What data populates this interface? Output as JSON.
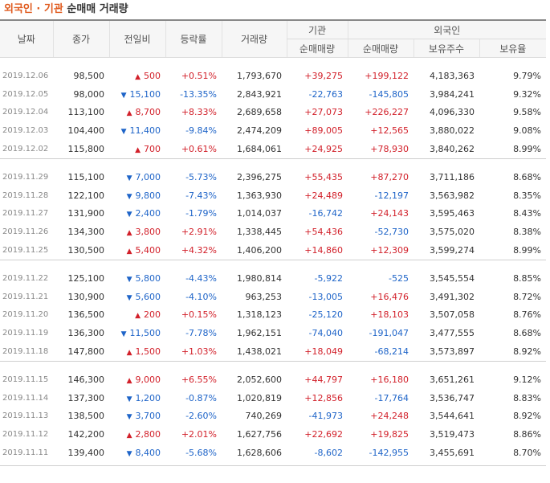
{
  "title": {
    "part1": "외국인",
    "separator": "·",
    "part2": "기관",
    "rest": "순매매 거래량"
  },
  "headers": {
    "date": "날짜",
    "close": "종가",
    "change": "전일비",
    "rate": "등락률",
    "volume": "거래량",
    "institution": "기관",
    "foreign": "외국인",
    "inst_net": "순매매량",
    "foreign_net": "순매매량",
    "foreign_shares": "보유주수",
    "foreign_ratio": "보유율"
  },
  "colors": {
    "up": "#d2202a",
    "down": "#1e64c8",
    "title_accent": "#e05b1f"
  },
  "groups": [
    [
      {
        "date": "2019.12.06",
        "close": "98,500",
        "dir": "up",
        "change": "500",
        "rate": "+0.51%",
        "volume": "1,793,670",
        "inst": "+39,275",
        "foreign": "+199,122",
        "shares": "4,183,363",
        "ratio": "9.79%"
      },
      {
        "date": "2019.12.05",
        "close": "98,000",
        "dir": "down",
        "change": "15,100",
        "rate": "-13.35%",
        "volume": "2,843,921",
        "inst": "-22,763",
        "foreign": "-145,805",
        "shares": "3,984,241",
        "ratio": "9.32%"
      },
      {
        "date": "2019.12.04",
        "close": "113,100",
        "dir": "up",
        "change": "8,700",
        "rate": "+8.33%",
        "volume": "2,689,658",
        "inst": "+27,073",
        "foreign": "+226,227",
        "shares": "4,096,330",
        "ratio": "9.58%"
      },
      {
        "date": "2019.12.03",
        "close": "104,400",
        "dir": "down",
        "change": "11,400",
        "rate": "-9.84%",
        "volume": "2,474,209",
        "inst": "+89,005",
        "foreign": "+12,565",
        "shares": "3,880,022",
        "ratio": "9.08%"
      },
      {
        "date": "2019.12.02",
        "close": "115,800",
        "dir": "up",
        "change": "700",
        "rate": "+0.61%",
        "volume": "1,684,061",
        "inst": "+24,925",
        "foreign": "+78,930",
        "shares": "3,840,262",
        "ratio": "8.99%"
      }
    ],
    [
      {
        "date": "2019.11.29",
        "close": "115,100",
        "dir": "down",
        "change": "7,000",
        "rate": "-5.73%",
        "volume": "2,396,275",
        "inst": "+55,435",
        "foreign": "+87,270",
        "shares": "3,711,186",
        "ratio": "8.68%"
      },
      {
        "date": "2019.11.28",
        "close": "122,100",
        "dir": "down",
        "change": "9,800",
        "rate": "-7.43%",
        "volume": "1,363,930",
        "inst": "+24,489",
        "foreign": "-12,197",
        "shares": "3,563,982",
        "ratio": "8.35%"
      },
      {
        "date": "2019.11.27",
        "close": "131,900",
        "dir": "down",
        "change": "2,400",
        "rate": "-1.79%",
        "volume": "1,014,037",
        "inst": "-16,742",
        "foreign": "+24,143",
        "shares": "3,595,463",
        "ratio": "8.43%"
      },
      {
        "date": "2019.11.26",
        "close": "134,300",
        "dir": "up",
        "change": "3,800",
        "rate": "+2.91%",
        "volume": "1,338,445",
        "inst": "+54,436",
        "foreign": "-52,730",
        "shares": "3,575,020",
        "ratio": "8.38%"
      },
      {
        "date": "2019.11.25",
        "close": "130,500",
        "dir": "up",
        "change": "5,400",
        "rate": "+4.32%",
        "volume": "1,406,200",
        "inst": "+14,860",
        "foreign": "+12,309",
        "shares": "3,599,274",
        "ratio": "8.99%"
      }
    ],
    [
      {
        "date": "2019.11.22",
        "close": "125,100",
        "dir": "down",
        "change": "5,800",
        "rate": "-4.43%",
        "volume": "1,980,814",
        "inst": "-5,922",
        "foreign": "-525",
        "shares": "3,545,554",
        "ratio": "8.85%"
      },
      {
        "date": "2019.11.21",
        "close": "130,900",
        "dir": "down",
        "change": "5,600",
        "rate": "-4.10%",
        "volume": "963,253",
        "inst": "-13,005",
        "foreign": "+16,476",
        "shares": "3,491,302",
        "ratio": "8.72%"
      },
      {
        "date": "2019.11.20",
        "close": "136,500",
        "dir": "up",
        "change": "200",
        "rate": "+0.15%",
        "volume": "1,318,123",
        "inst": "-25,120",
        "foreign": "+18,103",
        "shares": "3,507,058",
        "ratio": "8.76%"
      },
      {
        "date": "2019.11.19",
        "close": "136,300",
        "dir": "down",
        "change": "11,500",
        "rate": "-7.78%",
        "volume": "1,962,151",
        "inst": "-74,040",
        "foreign": "-191,047",
        "shares": "3,477,555",
        "ratio": "8.68%"
      },
      {
        "date": "2019.11.18",
        "close": "147,800",
        "dir": "up",
        "change": "1,500",
        "rate": "+1.03%",
        "volume": "1,438,021",
        "inst": "+18,049",
        "foreign": "-68,214",
        "shares": "3,573,897",
        "ratio": "8.92%"
      }
    ],
    [
      {
        "date": "2019.11.15",
        "close": "146,300",
        "dir": "up",
        "change": "9,000",
        "rate": "+6.55%",
        "volume": "2,052,600",
        "inst": "+44,797",
        "foreign": "+16,180",
        "shares": "3,651,261",
        "ratio": "9.12%"
      },
      {
        "date": "2019.11.14",
        "close": "137,300",
        "dir": "down",
        "change": "1,200",
        "rate": "-0.87%",
        "volume": "1,020,819",
        "inst": "+12,856",
        "foreign": "-17,764",
        "shares": "3,536,747",
        "ratio": "8.83%"
      },
      {
        "date": "2019.11.13",
        "close": "138,500",
        "dir": "down",
        "change": "3,700",
        "rate": "-2.60%",
        "volume": "740,269",
        "inst": "-41,973",
        "foreign": "+24,248",
        "shares": "3,544,641",
        "ratio": "8.92%"
      },
      {
        "date": "2019.11.12",
        "close": "142,200",
        "dir": "up",
        "change": "2,800",
        "rate": "+2.01%",
        "volume": "1,627,756",
        "inst": "+22,692",
        "foreign": "+19,825",
        "shares": "3,519,473",
        "ratio": "8.86%"
      },
      {
        "date": "2019.11.11",
        "close": "139,400",
        "dir": "down",
        "change": "8,400",
        "rate": "-5.68%",
        "volume": "1,628,606",
        "inst": "-8,602",
        "foreign": "-142,955",
        "shares": "3,455,691",
        "ratio": "8.70%"
      }
    ]
  ]
}
